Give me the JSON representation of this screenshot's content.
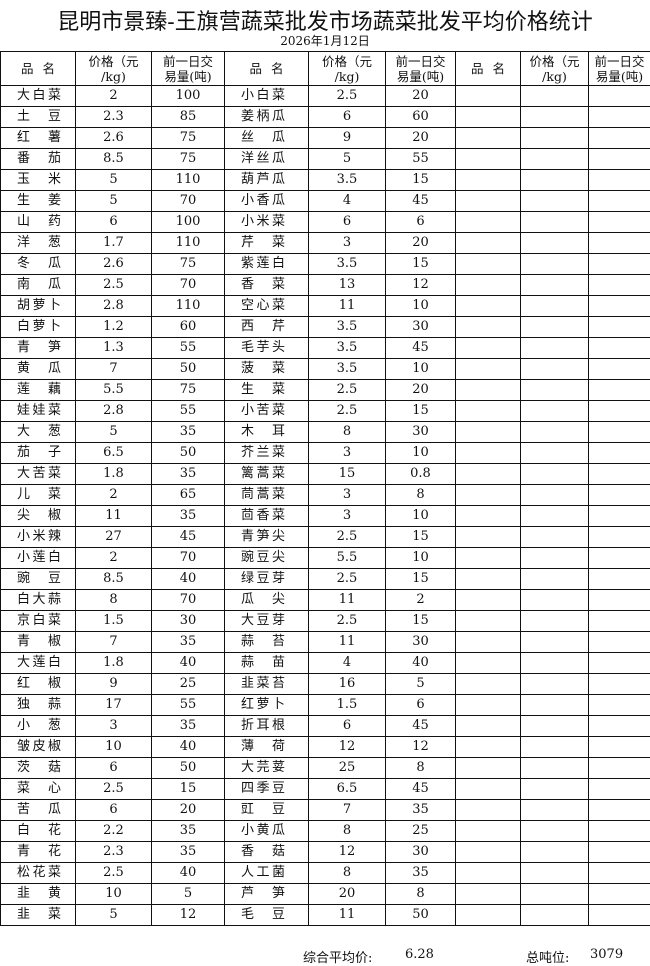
{
  "title": "昆明市景臻-王旗营蔬菜批发市场蔬菜批发平均价格统计",
  "date": "2026年1月12日",
  "headers": {
    "name": "品名",
    "price_line1": "价格（元",
    "price_line2": "/kg)",
    "volume_line1": "前一日交",
    "volume_line2": "易量(吨)"
  },
  "rows": [
    [
      [
        "大白菜",
        "2",
        "100"
      ],
      [
        "小白菜",
        "2.5",
        "20"
      ]
    ],
    [
      [
        "土豆",
        "2.3",
        "85"
      ],
      [
        "姜柄瓜",
        "6",
        "60"
      ]
    ],
    [
      [
        "红薯",
        "2.6",
        "75"
      ],
      [
        "丝瓜",
        "9",
        "20"
      ]
    ],
    [
      [
        "番茄",
        "8.5",
        "75"
      ],
      [
        "洋丝瓜",
        "5",
        "55"
      ]
    ],
    [
      [
        "玉米",
        "5",
        "110"
      ],
      [
        "葫芦瓜",
        "3.5",
        "15"
      ]
    ],
    [
      [
        "生姜",
        "5",
        "70"
      ],
      [
        "小香瓜",
        "4",
        "45"
      ]
    ],
    [
      [
        "山药",
        "6",
        "100"
      ],
      [
        "小米菜",
        "6",
        "6"
      ]
    ],
    [
      [
        "洋葱",
        "1.7",
        "110"
      ],
      [
        "芹菜",
        "3",
        "20"
      ]
    ],
    [
      [
        "冬瓜",
        "2.6",
        "75"
      ],
      [
        "紫莲白",
        "3.5",
        "15"
      ]
    ],
    [
      [
        "南瓜",
        "2.5",
        "70"
      ],
      [
        "香菜",
        "13",
        "12"
      ]
    ],
    [
      [
        "胡萝卜",
        "2.8",
        "110"
      ],
      [
        "空心菜",
        "11",
        "10"
      ]
    ],
    [
      [
        "白萝卜",
        "1.2",
        "60"
      ],
      [
        "西芹",
        "3.5",
        "30"
      ]
    ],
    [
      [
        "青笋",
        "1.3",
        "55"
      ],
      [
        "毛芋头",
        "3.5",
        "45"
      ]
    ],
    [
      [
        "黄瓜",
        "7",
        "50"
      ],
      [
        "菠菜",
        "3.5",
        "10"
      ]
    ],
    [
      [
        "莲藕",
        "5.5",
        "75"
      ],
      [
        "生菜",
        "2.5",
        "20"
      ]
    ],
    [
      [
        "娃娃菜",
        "2.8",
        "55"
      ],
      [
        "小苦菜",
        "2.5",
        "15"
      ]
    ],
    [
      [
        "大葱",
        "5",
        "35"
      ],
      [
        "木耳",
        "8",
        "30"
      ]
    ],
    [
      [
        "茄子",
        "6.5",
        "50"
      ],
      [
        "芥兰菜",
        "3",
        "10"
      ]
    ],
    [
      [
        "大苦菜",
        "1.8",
        "35"
      ],
      [
        "篱蒿菜",
        "15",
        "0.8"
      ]
    ],
    [
      [
        "儿菜",
        "2",
        "65"
      ],
      [
        "茼蒿菜",
        "3",
        "8"
      ]
    ],
    [
      [
        "尖椒",
        "11",
        "35"
      ],
      [
        "茴香菜",
        "3",
        "10"
      ]
    ],
    [
      [
        "小米辣",
        "27",
        "45"
      ],
      [
        "青笋尖",
        "2.5",
        "15"
      ]
    ],
    [
      [
        "小莲白",
        "2",
        "70"
      ],
      [
        "豌豆尖",
        "5.5",
        "10"
      ]
    ],
    [
      [
        "豌豆",
        "8.5",
        "40"
      ],
      [
        "绿豆芽",
        "2.5",
        "15"
      ]
    ],
    [
      [
        "白大蒜",
        "8",
        "70"
      ],
      [
        "瓜尖",
        "11",
        "2"
      ]
    ],
    [
      [
        "京白菜",
        "1.5",
        "30"
      ],
      [
        "大豆芽",
        "2.5",
        "15"
      ]
    ],
    [
      [
        "青椒",
        "7",
        "35"
      ],
      [
        "蒜苔",
        "11",
        "30"
      ]
    ],
    [
      [
        "大莲白",
        "1.8",
        "40"
      ],
      [
        "蒜苗",
        "4",
        "40"
      ]
    ],
    [
      [
        "红椒",
        "9",
        "25"
      ],
      [
        "韭菜苔",
        "16",
        "5"
      ]
    ],
    [
      [
        "独蒜",
        "17",
        "55"
      ],
      [
        "红萝卜",
        "1.5",
        "6"
      ]
    ],
    [
      [
        "小葱",
        "3",
        "35"
      ],
      [
        "折耳根",
        "6",
        "45"
      ]
    ],
    [
      [
        "皱皮椒",
        "10",
        "40"
      ],
      [
        "薄荷",
        "12",
        "12"
      ]
    ],
    [
      [
        "茨菇",
        "6",
        "50"
      ],
      [
        "大芫荽",
        "25",
        "8"
      ]
    ],
    [
      [
        "菜心",
        "2.5",
        "15"
      ],
      [
        "四季豆",
        "6.5",
        "45"
      ]
    ],
    [
      [
        "苦瓜",
        "6",
        "20"
      ],
      [
        "豇豆",
        "7",
        "35"
      ]
    ],
    [
      [
        "白花",
        "2.2",
        "35"
      ],
      [
        "小黄瓜",
        "8",
        "25"
      ]
    ],
    [
      [
        "青花",
        "2.3",
        "35"
      ],
      [
        "香菇",
        "12",
        "30"
      ]
    ],
    [
      [
        "松花菜",
        "2.5",
        "40"
      ],
      [
        "人工菌",
        "8",
        "35"
      ]
    ],
    [
      [
        "韭黄",
        "10",
        "5"
      ],
      [
        "芦笋",
        "20",
        "8"
      ]
    ],
    [
      [
        "韭菜",
        "5",
        "12"
      ],
      [
        "毛豆",
        "11",
        "50"
      ]
    ]
  ],
  "footer": {
    "avg_label": "综合平均价:",
    "avg_value": "6.28",
    "total_label": "总吨位:",
    "total_value": "3079"
  }
}
